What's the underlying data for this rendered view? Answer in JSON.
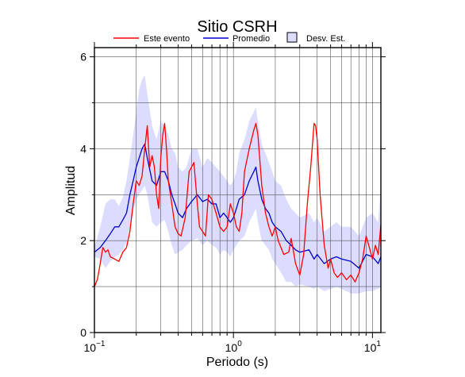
{
  "chart_data": {
    "type": "line",
    "title": "Sitio CSRH",
    "xlabel": "Periodo (s)",
    "ylabel": "Amplitud",
    "xscale": "log",
    "xlim": [
      0.1,
      11.5
    ],
    "ylim": [
      0,
      6.2
    ],
    "grid": true,
    "legend_position": "top",
    "x_ticks": [
      {
        "value": 0.1,
        "base": "10",
        "exp": "−1"
      },
      {
        "value": 1,
        "base": "10",
        "exp": "0"
      },
      {
        "value": 10,
        "base": "10",
        "exp": "1"
      }
    ],
    "y_ticks": [
      {
        "value": 0,
        "label": "0"
      },
      {
        "value": 2,
        "label": "2"
      },
      {
        "value": 4,
        "label": "4"
      },
      {
        "value": 6,
        "label": "6"
      }
    ],
    "series": [
      {
        "name": "Este evento",
        "kind": "line",
        "color": "#ff0000",
        "points": [
          [
            0.1,
            1.0
          ],
          [
            0.105,
            1.15
          ],
          [
            0.11,
            1.5
          ],
          [
            0.115,
            1.85
          ],
          [
            0.12,
            1.75
          ],
          [
            0.125,
            1.8
          ],
          [
            0.13,
            1.65
          ],
          [
            0.14,
            1.6
          ],
          [
            0.15,
            1.55
          ],
          [
            0.16,
            1.75
          ],
          [
            0.17,
            1.85
          ],
          [
            0.18,
            2.2
          ],
          [
            0.19,
            2.8
          ],
          [
            0.2,
            3.3
          ],
          [
            0.21,
            3.2
          ],
          [
            0.22,
            3.4
          ],
          [
            0.23,
            4.0
          ],
          [
            0.24,
            4.5
          ],
          [
            0.25,
            3.6
          ],
          [
            0.26,
            3.85
          ],
          [
            0.27,
            3.6
          ],
          [
            0.28,
            3.0
          ],
          [
            0.29,
            2.7
          ],
          [
            0.3,
            3.8
          ],
          [
            0.31,
            4.3
          ],
          [
            0.32,
            4.55
          ],
          [
            0.33,
            4.0
          ],
          [
            0.34,
            3.3
          ],
          [
            0.36,
            2.8
          ],
          [
            0.38,
            2.3
          ],
          [
            0.4,
            2.15
          ],
          [
            0.42,
            2.1
          ],
          [
            0.45,
            2.5
          ],
          [
            0.48,
            3.5
          ],
          [
            0.5,
            3.6
          ],
          [
            0.52,
            3.7
          ],
          [
            0.55,
            2.8
          ],
          [
            0.57,
            2.3
          ],
          [
            0.6,
            2.2
          ],
          [
            0.63,
            2.1
          ],
          [
            0.66,
            3.0
          ],
          [
            0.7,
            2.9
          ],
          [
            0.75,
            2.6
          ],
          [
            0.8,
            2.3
          ],
          [
            0.85,
            2.2
          ],
          [
            0.9,
            2.3
          ],
          [
            0.95,
            2.8
          ],
          [
            1.0,
            2.6
          ],
          [
            1.05,
            2.3
          ],
          [
            1.1,
            2.2
          ],
          [
            1.15,
            2.6
          ],
          [
            1.2,
            3.5
          ],
          [
            1.3,
            4.0
          ],
          [
            1.4,
            4.4
          ],
          [
            1.45,
            4.55
          ],
          [
            1.5,
            4.3
          ],
          [
            1.6,
            3.2
          ],
          [
            1.7,
            2.6
          ],
          [
            1.8,
            2.3
          ],
          [
            1.9,
            2.1
          ],
          [
            2.0,
            2.3
          ],
          [
            2.1,
            2.0
          ],
          [
            2.3,
            1.7
          ],
          [
            2.5,
            1.75
          ],
          [
            2.6,
            2.05
          ],
          [
            2.8,
            1.5
          ],
          [
            3.0,
            1.25
          ],
          [
            3.2,
            1.7
          ],
          [
            3.4,
            2.8
          ],
          [
            3.6,
            3.6
          ],
          [
            3.8,
            4.55
          ],
          [
            3.9,
            4.5
          ],
          [
            4.0,
            4.2
          ],
          [
            4.2,
            3.0
          ],
          [
            4.5,
            1.9
          ],
          [
            4.8,
            1.4
          ],
          [
            5.0,
            1.6
          ],
          [
            5.3,
            1.3
          ],
          [
            5.6,
            1.2
          ],
          [
            6.0,
            1.3
          ],
          [
            6.5,
            1.15
          ],
          [
            7.0,
            1.25
          ],
          [
            7.5,
            1.1
          ],
          [
            8.0,
            1.3
          ],
          [
            8.5,
            1.6
          ],
          [
            9.0,
            2.1
          ],
          [
            9.5,
            1.85
          ],
          [
            10.0,
            1.6
          ],
          [
            10.5,
            1.9
          ],
          [
            11.0,
            1.7
          ],
          [
            11.5,
            2.35
          ]
        ]
      },
      {
        "name": "Promedio",
        "kind": "line",
        "color": "#0000cc",
        "points": [
          [
            0.1,
            1.75
          ],
          [
            0.11,
            1.85
          ],
          [
            0.12,
            2.0
          ],
          [
            0.13,
            2.15
          ],
          [
            0.14,
            2.3
          ],
          [
            0.15,
            2.3
          ],
          [
            0.16,
            2.45
          ],
          [
            0.17,
            2.6
          ],
          [
            0.18,
            3.0
          ],
          [
            0.19,
            3.3
          ],
          [
            0.2,
            3.6
          ],
          [
            0.21,
            3.8
          ],
          [
            0.22,
            4.0
          ],
          [
            0.23,
            4.1
          ],
          [
            0.24,
            3.8
          ],
          [
            0.26,
            3.3
          ],
          [
            0.28,
            3.2
          ],
          [
            0.3,
            3.5
          ],
          [
            0.32,
            3.5
          ],
          [
            0.34,
            3.3
          ],
          [
            0.36,
            3.0
          ],
          [
            0.38,
            2.8
          ],
          [
            0.4,
            2.6
          ],
          [
            0.43,
            2.5
          ],
          [
            0.46,
            2.7
          ],
          [
            0.5,
            2.85
          ],
          [
            0.55,
            3.0
          ],
          [
            0.6,
            2.85
          ],
          [
            0.65,
            2.9
          ],
          [
            0.7,
            2.8
          ],
          [
            0.75,
            2.8
          ],
          [
            0.8,
            2.5
          ],
          [
            0.85,
            2.6
          ],
          [
            0.9,
            2.5
          ],
          [
            0.95,
            2.4
          ],
          [
            1.0,
            2.5
          ],
          [
            1.05,
            2.7
          ],
          [
            1.1,
            2.9
          ],
          [
            1.2,
            3.0
          ],
          [
            1.3,
            3.3
          ],
          [
            1.4,
            3.5
          ],
          [
            1.45,
            3.6
          ],
          [
            1.5,
            3.3
          ],
          [
            1.6,
            2.9
          ],
          [
            1.7,
            2.7
          ],
          [
            1.8,
            2.6
          ],
          [
            1.9,
            2.4
          ],
          [
            2.0,
            2.3
          ],
          [
            2.2,
            2.2
          ],
          [
            2.4,
            2.0
          ],
          [
            2.6,
            1.9
          ],
          [
            2.8,
            1.8
          ],
          [
            3.0,
            1.75
          ],
          [
            3.5,
            1.8
          ],
          [
            3.8,
            1.6
          ],
          [
            4.0,
            1.7
          ],
          [
            4.5,
            1.5
          ],
          [
            5.0,
            1.6
          ],
          [
            5.5,
            1.65
          ],
          [
            6.0,
            1.6
          ],
          [
            7.0,
            1.55
          ],
          [
            8.0,
            1.4
          ],
          [
            9.0,
            1.7
          ],
          [
            10.0,
            1.65
          ],
          [
            11.0,
            1.5
          ],
          [
            11.5,
            1.65
          ]
        ]
      },
      {
        "name": "Desv. Est.",
        "kind": "band",
        "color": "#dcdcff",
        "points": [
          [
            0.1,
            1.65,
            1.85
          ],
          [
            0.11,
            1.6,
            2.3
          ],
          [
            0.12,
            1.4,
            2.8
          ],
          [
            0.13,
            1.55,
            2.9
          ],
          [
            0.14,
            1.65,
            2.9
          ],
          [
            0.15,
            1.7,
            2.75
          ],
          [
            0.16,
            1.8,
            2.95
          ],
          [
            0.17,
            1.95,
            3.3
          ],
          [
            0.18,
            2.3,
            3.8
          ],
          [
            0.19,
            2.6,
            4.3
          ],
          [
            0.2,
            2.9,
            4.8
          ],
          [
            0.21,
            3.0,
            5.3
          ],
          [
            0.22,
            3.1,
            5.5
          ],
          [
            0.23,
            3.2,
            5.6
          ],
          [
            0.24,
            3.0,
            5.2
          ],
          [
            0.26,
            2.4,
            4.5
          ],
          [
            0.28,
            2.3,
            4.2
          ],
          [
            0.3,
            2.4,
            4.6
          ],
          [
            0.32,
            2.45,
            4.5
          ],
          [
            0.34,
            2.2,
            4.3
          ],
          [
            0.36,
            1.9,
            4.0
          ],
          [
            0.38,
            1.7,
            3.9
          ],
          [
            0.4,
            1.75,
            3.6
          ],
          [
            0.43,
            1.8,
            3.5
          ],
          [
            0.46,
            1.9,
            3.6
          ],
          [
            0.5,
            2.0,
            4.0
          ],
          [
            0.55,
            2.05,
            4.0
          ],
          [
            0.6,
            1.9,
            3.6
          ],
          [
            0.65,
            2.0,
            3.8
          ],
          [
            0.7,
            1.9,
            3.7
          ],
          [
            0.75,
            1.85,
            3.6
          ],
          [
            0.8,
            1.7,
            3.5
          ],
          [
            0.85,
            1.8,
            3.4
          ],
          [
            0.9,
            1.75,
            3.3
          ],
          [
            0.95,
            1.65,
            3.2
          ],
          [
            1.0,
            1.8,
            3.3
          ],
          [
            1.05,
            1.9,
            3.5
          ],
          [
            1.1,
            2.0,
            3.9
          ],
          [
            1.2,
            2.1,
            4.2
          ],
          [
            1.3,
            2.4,
            4.6
          ],
          [
            1.4,
            2.6,
            4.8
          ],
          [
            1.45,
            2.7,
            4.9
          ],
          [
            1.5,
            2.4,
            4.6
          ],
          [
            1.6,
            2.0,
            4.1
          ],
          [
            1.7,
            1.9,
            3.9
          ],
          [
            1.8,
            1.8,
            3.7
          ],
          [
            1.9,
            1.6,
            3.5
          ],
          [
            2.0,
            1.5,
            3.3
          ],
          [
            2.2,
            1.3,
            3.2
          ],
          [
            2.4,
            1.1,
            2.9
          ],
          [
            2.6,
            1.1,
            2.7
          ],
          [
            2.8,
            1.0,
            2.6
          ],
          [
            3.0,
            1.05,
            2.5
          ],
          [
            3.5,
            1.0,
            2.6
          ],
          [
            3.8,
            0.95,
            2.4
          ],
          [
            4.0,
            1.0,
            2.5
          ],
          [
            4.5,
            0.9,
            2.2
          ],
          [
            5.0,
            0.95,
            2.3
          ],
          [
            5.5,
            1.0,
            2.4
          ],
          [
            6.0,
            0.95,
            2.3
          ],
          [
            7.0,
            0.85,
            2.3
          ],
          [
            8.0,
            0.85,
            2.1
          ],
          [
            9.0,
            0.9,
            2.5
          ],
          [
            10.0,
            0.9,
            2.6
          ],
          [
            11.0,
            0.95,
            2.4
          ],
          [
            11.5,
            1.0,
            3.2
          ]
        ]
      }
    ]
  }
}
